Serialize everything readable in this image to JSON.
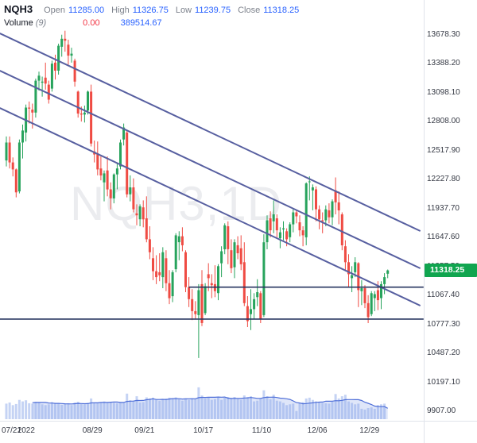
{
  "header": {
    "symbol": "NQH3",
    "fields": [
      {
        "label": "Open",
        "value": "11285.00"
      },
      {
        "label": "High",
        "value": "11326.75"
      },
      {
        "label": "Low",
        "value": "11239.75"
      },
      {
        "label": "Close",
        "value": "11318.25"
      }
    ],
    "indicator": {
      "name": "Volume",
      "period": "(9)",
      "current": "0.00",
      "ma": "389514.67"
    }
  },
  "watermark": "NQH3,1D",
  "price_tag": {
    "value": "11318.25"
  },
  "y_axis": {
    "ticks": [
      "13678.30",
      "13388.20",
      "13098.10",
      "12808.00",
      "12517.90",
      "12227.80",
      "11937.70",
      "11647.60",
      "11357.50",
      "11067.40",
      "10777.30",
      "10487.20",
      "10197.10",
      "9907.00"
    ]
  },
  "x_axis": {
    "labels": [
      {
        "text": "07/21",
        "bar": 0
      },
      {
        "text": "2022",
        "bar": 7
      },
      {
        "text": "08/29",
        "bar": 27
      },
      {
        "text": "09/21",
        "bar": 43
      },
      {
        "text": "10/17",
        "bar": 61
      },
      {
        "text": "11/10",
        "bar": 79
      },
      {
        "text": "12/06",
        "bar": 96
      },
      {
        "text": "12/29",
        "bar": 112
      }
    ]
  },
  "colors": {
    "up": "#27a35c",
    "down": "#ef4b43",
    "trendline": "#575fa0",
    "hline": "#27345f",
    "volume_bar": "rgba(126,157,230,0.45)",
    "volume_fill": "rgba(126,157,230,0.25)",
    "volume_ma": "#4f6fd8",
    "accent_blue": "#2962ff",
    "accent_red": "#f23645",
    "tag_green": "#10a54f"
  },
  "chart_data": {
    "type": "candlestick",
    "symbol": "NQH3",
    "timeframe": "1D",
    "title": "NQH3 1D candlestick chart with volume, trend channel and support lines",
    "ylim": [
      9811,
      14028
    ],
    "volume_scale_max": 900000,
    "volume_ma_period": 9,
    "dates": [
      "07/21",
      "07/22",
      "07/25",
      "07/26",
      "07/27",
      "07/28",
      "07/29",
      "08/01",
      "08/02",
      "08/03",
      "08/04",
      "08/05",
      "08/08",
      "08/09",
      "08/10",
      "08/11",
      "08/12",
      "08/15",
      "08/16",
      "08/17",
      "08/18",
      "08/19",
      "08/22",
      "08/23",
      "08/24",
      "08/25",
      "08/26",
      "08/29",
      "08/30",
      "08/31",
      "09/01",
      "09/02",
      "09/06",
      "09/07",
      "09/08",
      "09/09",
      "09/12",
      "09/13",
      "09/14",
      "09/15",
      "09/16",
      "09/19",
      "09/20",
      "09/21",
      "09/22",
      "09/23",
      "09/26",
      "09/27",
      "09/28",
      "09/29",
      "09/30",
      "10/03",
      "10/04",
      "10/05",
      "10/06",
      "10/07",
      "10/10",
      "10/11",
      "10/12",
      "10/13",
      "10/14",
      "10/17",
      "10/18",
      "10/19",
      "10/20",
      "10/21",
      "10/24",
      "10/25",
      "10/26",
      "10/27",
      "10/28",
      "10/31",
      "11/01",
      "11/02",
      "11/03",
      "11/04",
      "11/07",
      "11/08",
      "11/09",
      "11/10",
      "11/11",
      "11/14",
      "11/15",
      "11/16",
      "11/17",
      "11/18",
      "11/21",
      "11/22",
      "11/23",
      "11/25",
      "11/28",
      "11/29",
      "11/30",
      "12/01",
      "12/02",
      "12/05",
      "12/06",
      "12/07",
      "12/08",
      "12/09",
      "12/12",
      "12/13",
      "12/14",
      "12/15",
      "12/16",
      "12/19",
      "12/20",
      "12/21",
      "12/22",
      "12/23",
      "12/27",
      "12/28",
      "12/29",
      "12/30",
      "01/03",
      "01/04",
      "01/05",
      "01/06"
    ],
    "ohlc": [
      [
        12420,
        12660,
        12360,
        12600
      ],
      [
        12600,
        12660,
        12340,
        12400
      ],
      [
        12400,
        12450,
        12260,
        12330
      ],
      [
        12330,
        12340,
        12050,
        12100
      ],
      [
        12110,
        12630,
        12090,
        12600
      ],
      [
        12600,
        12780,
        12440,
        12720
      ],
      [
        12700,
        12980,
        12610,
        12950
      ],
      [
        12950,
        13010,
        12790,
        12940
      ],
      [
        12930,
        12990,
        12740,
        12900
      ],
      [
        12900,
        13240,
        12850,
        13220
      ],
      [
        13220,
        13310,
        13120,
        13270
      ],
      [
        13200,
        13260,
        13060,
        13210
      ],
      [
        13250,
        13400,
        13130,
        13190
      ],
      [
        13180,
        13220,
        12990,
        13030
      ],
      [
        13140,
        13420,
        13110,
        13390
      ],
      [
        13400,
        13480,
        13230,
        13320
      ],
      [
        13320,
        13590,
        13280,
        13570
      ],
      [
        13560,
        13680,
        13460,
        13640
      ],
      [
        13640,
        13720,
        13510,
        13620
      ],
      [
        13580,
        13630,
        13380,
        13470
      ],
      [
        13470,
        13550,
        13400,
        13490
      ],
      [
        13420,
        13440,
        13160,
        13210
      ],
      [
        13110,
        13120,
        12850,
        12890
      ],
      [
        12890,
        12960,
        12810,
        12880
      ],
      [
        12880,
        12970,
        12800,
        12900
      ],
      [
        12920,
        13120,
        12880,
        13110
      ],
      [
        13110,
        13180,
        12560,
        12590
      ],
      [
        12510,
        12620,
        12400,
        12480
      ],
      [
        12490,
        12610,
        12270,
        12330
      ],
      [
        12340,
        12460,
        12220,
        12270
      ],
      [
        12200,
        12320,
        12010,
        12290
      ],
      [
        12320,
        12460,
        12060,
        12130
      ],
      [
        12130,
        12200,
        11930,
        12040
      ],
      [
        12040,
        12290,
        11990,
        12280
      ],
      [
        12280,
        12390,
        12130,
        12340
      ],
      [
        12360,
        12630,
        12330,
        12600
      ],
      [
        12630,
        12790,
        12570,
        12750
      ],
      [
        12700,
        12720,
        12050,
        12080
      ],
      [
        12080,
        12270,
        12010,
        12150
      ],
      [
        12150,
        12240,
        11900,
        11930
      ],
      [
        11890,
        11980,
        11770,
        11870
      ],
      [
        11830,
        11980,
        11760,
        11960
      ],
      [
        11950,
        12020,
        11750,
        11830
      ],
      [
        11840,
        12060,
        11600,
        11630
      ],
      [
        11630,
        11760,
        11430,
        11500
      ],
      [
        11440,
        11550,
        11220,
        11310
      ],
      [
        11310,
        11470,
        11180,
        11250
      ],
      [
        11300,
        11490,
        11210,
        11270
      ],
      [
        11250,
        11550,
        11140,
        11500
      ],
      [
        11440,
        11520,
        11110,
        11190
      ],
      [
        11190,
        11320,
        10980,
        11040
      ],
      [
        11060,
        11320,
        11000,
        11300
      ],
      [
        11330,
        11690,
        11300,
        11670
      ],
      [
        11600,
        11710,
        11420,
        11660
      ],
      [
        11660,
        11750,
        11510,
        11570
      ],
      [
        11500,
        11520,
        11100,
        11150
      ],
      [
        11150,
        11250,
        10950,
        11030
      ],
      [
        11030,
        11130,
        10820,
        10910
      ],
      [
        10910,
        11010,
        10830,
        10880
      ],
      [
        10870,
        11180,
        10440,
        11120
      ],
      [
        11180,
        11320,
        10760,
        10790
      ],
      [
        10890,
        11190,
        10870,
        11160
      ],
      [
        11280,
        11390,
        11110,
        11240
      ],
      [
        11190,
        11280,
        11040,
        11170
      ],
      [
        11180,
        11370,
        11050,
        11110
      ],
      [
        11090,
        11380,
        11020,
        11360
      ],
      [
        11390,
        11560,
        11250,
        11510
      ],
      [
        11530,
        11790,
        11480,
        11770
      ],
      [
        11760,
        11810,
        11380,
        11530
      ],
      [
        11520,
        11630,
        11290,
        11340
      ],
      [
        11350,
        11630,
        11240,
        11600
      ],
      [
        11570,
        11660,
        11430,
        11490
      ],
      [
        11540,
        11670,
        11320,
        11380
      ],
      [
        11400,
        11600,
        10960,
        10990
      ],
      [
        10960,
        11060,
        10750,
        10810
      ],
      [
        10880,
        11130,
        10720,
        10930
      ],
      [
        10930,
        11090,
        10830,
        11030
      ],
      [
        11050,
        11230,
        10960,
        11100
      ],
      [
        11090,
        11110,
        10790,
        10830
      ],
      [
        10870,
        11680,
        10850,
        11600
      ],
      [
        11600,
        11870,
        11530,
        11820
      ],
      [
        11840,
        11910,
        11650,
        11720
      ],
      [
        11810,
        12020,
        11690,
        11880
      ],
      [
        11840,
        11880,
        11650,
        11720
      ],
      [
        11640,
        11750,
        11540,
        11700
      ],
      [
        11730,
        11810,
        11620,
        11740
      ],
      [
        11710,
        11740,
        11560,
        11630
      ],
      [
        11650,
        11800,
        11600,
        11780
      ],
      [
        11780,
        11930,
        11700,
        11900
      ],
      [
        11900,
        11920,
        11790,
        11860
      ],
      [
        11800,
        11870,
        11660,
        11720
      ],
      [
        11720,
        11760,
        11560,
        11670
      ],
      [
        11650,
        12200,
        11570,
        12190
      ],
      [
        12210,
        12260,
        12020,
        12210
      ],
      [
        12120,
        12180,
        11920,
        12150
      ],
      [
        12130,
        12160,
        11810,
        11930
      ],
      [
        11930,
        11970,
        11730,
        11830
      ],
      [
        11820,
        11900,
        11690,
        11810
      ],
      [
        11820,
        11970,
        11760,
        11930
      ],
      [
        11920,
        11990,
        11790,
        11850
      ],
      [
        11850,
        12030,
        11770,
        12010
      ],
      [
        12120,
        12250,
        11880,
        12000
      ],
      [
        12000,
        12110,
        11780,
        11920
      ],
      [
        11880,
        11900,
        11520,
        11570
      ],
      [
        11560,
        11620,
        11310,
        11400
      ],
      [
        11400,
        11480,
        11150,
        11280
      ],
      [
        11240,
        11360,
        11100,
        11270
      ],
      [
        11300,
        11450,
        11250,
        11400
      ],
      [
        11390,
        11400,
        10950,
        11120
      ],
      [
        11110,
        11220,
        10970,
        11140
      ],
      [
        11140,
        11170,
        10940,
        10990
      ],
      [
        10990,
        11070,
        10790,
        10850
      ],
      [
        10880,
        11110,
        10860,
        11090
      ],
      [
        11040,
        11110,
        10910,
        11080
      ],
      [
        11120,
        11210,
        10920,
        11020
      ],
      [
        11040,
        11210,
        10930,
        11180
      ],
      [
        11180,
        11290,
        11080,
        11250
      ],
      [
        11285,
        11326.75,
        11239.75,
        11318.25
      ]
    ],
    "volumes": [
      420000,
      450000,
      380000,
      410000,
      520000,
      480000,
      510000,
      430000,
      420000,
      470000,
      450000,
      400000,
      380000,
      400000,
      460000,
      420000,
      430000,
      390000,
      410000,
      430000,
      380000,
      450000,
      470000,
      410000,
      400000,
      440000,
      560000,
      430000,
      440000,
      460000,
      480000,
      450000,
      470000,
      440000,
      430000,
      460000,
      440000,
      690000,
      510000,
      500000,
      620000,
      450000,
      460000,
      590000,
      560000,
      580000,
      520000,
      500000,
      540000,
      560000,
      580000,
      560000,
      590000,
      540000,
      500000,
      560000,
      520000,
      560000,
      540000,
      860000,
      640000,
      560000,
      580000,
      520000,
      540000,
      580000,
      520000,
      580000,
      600000,
      560000,
      600000,
      540000,
      520000,
      640000,
      600000,
      620000,
      480000,
      500000,
      560000,
      780000,
      620000,
      540000,
      660000,
      500000,
      480000,
      440000,
      380000,
      400000,
      420000,
      220000,
      440000,
      460000,
      560000,
      580000,
      520000,
      480000,
      460000,
      440000,
      430000,
      420000,
      480000,
      680000,
      560000,
      620000,
      660000,
      480000,
      440000,
      400000,
      420000,
      280000,
      260000,
      300000,
      320000,
      280000,
      380000,
      400000,
      420000,
      0
    ],
    "trendlines": [
      {
        "name": "channel-top",
        "points": [
          [
            -2,
            13694
          ],
          [
            127,
            11713
          ]
        ]
      },
      {
        "name": "channel-middle",
        "points": [
          [
            -2,
            13320
          ],
          [
            127,
            11339
          ]
        ]
      },
      {
        "name": "channel-bottom",
        "points": [
          [
            -2,
            12946
          ],
          [
            127,
            10965
          ]
        ]
      }
    ],
    "horizontal_lines": [
      {
        "name": "resistance",
        "price": 11150,
        "from_bar": 56,
        "to_bar": 128
      },
      {
        "name": "support",
        "price": 10830,
        "from_bar": -2,
        "to_bar": 128
      }
    ]
  }
}
